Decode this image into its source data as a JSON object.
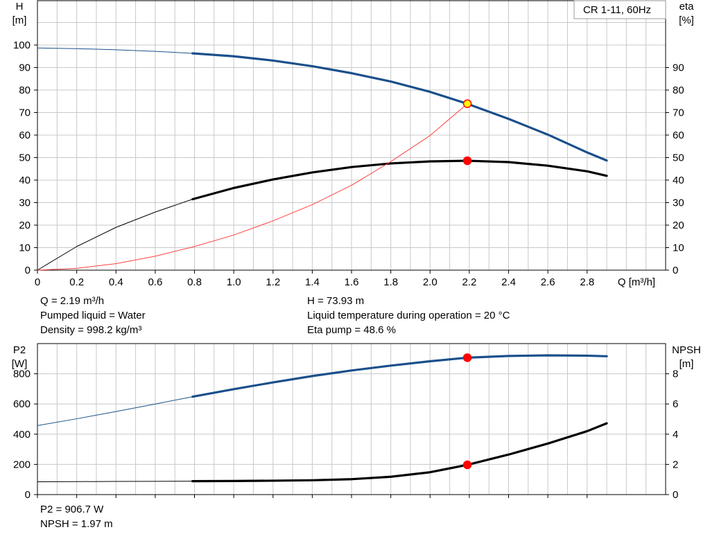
{
  "chart_data": [
    {
      "type": "line",
      "panel": "performance",
      "title": "CR 1-11, 60Hz",
      "x_axis": {
        "label": "Q [m³/h]",
        "range": [
          0,
          3.2
        ],
        "ticks": [
          0,
          0.2,
          0.4,
          0.6,
          0.8,
          1.0,
          1.2,
          1.4,
          1.6,
          1.8,
          2.0,
          2.2,
          2.4,
          2.6,
          2.8
        ],
        "tick_labels": [
          "0",
          "0.2",
          "0.4",
          "0.6",
          "0.8",
          "1.0",
          "1.2",
          "1.4",
          "1.6",
          "1.8",
          "2.0",
          "2.2",
          "2.4",
          "2.6",
          "2.8"
        ]
      },
      "y_left": {
        "label_line1": "H",
        "label_line2": "[m]",
        "range": [
          0,
          120
        ],
        "ticks": [
          0,
          10,
          20,
          30,
          40,
          50,
          60,
          70,
          80,
          90,
          100
        ]
      },
      "y_right": {
        "label_line1": "eta",
        "label_line2": "[%]",
        "range": [
          0,
          120
        ],
        "ticks": [
          0,
          10,
          20,
          30,
          40,
          50,
          60,
          70,
          80,
          90
        ]
      },
      "grid": true,
      "series": [
        {
          "id": "head",
          "color": "#1a4f8b",
          "axis": "left",
          "x": [
            0,
            0.2,
            0.4,
            0.6,
            0.79,
            1.0,
            1.2,
            1.4,
            1.6,
            1.8,
            2.0,
            2.19,
            2.4,
            2.6,
            2.8,
            2.9
          ],
          "y": [
            98.7,
            98.4,
            97.9,
            97.2,
            96.3,
            95.0,
            93.1,
            90.6,
            87.5,
            83.8,
            79.2,
            73.9,
            67.2,
            60.2,
            52.3,
            48.7
          ],
          "thin_until_x": 0.79
        },
        {
          "id": "efficiency",
          "color": "#000000",
          "axis": "right",
          "x": [
            0,
            0.2,
            0.4,
            0.6,
            0.79,
            1.0,
            1.2,
            1.4,
            1.6,
            1.8,
            2.0,
            2.19,
            2.4,
            2.6,
            2.8,
            2.9
          ],
          "y": [
            0,
            10.5,
            19.0,
            25.8,
            31.5,
            36.5,
            40.3,
            43.4,
            45.8,
            47.4,
            48.3,
            48.6,
            48.0,
            46.4,
            43.9,
            41.9
          ],
          "thin_until_x": 0.79
        },
        {
          "id": "system-curve",
          "color": "#ff4040",
          "axis": "left",
          "x": [
            0,
            0.2,
            0.4,
            0.6,
            0.8,
            1.0,
            1.2,
            1.4,
            1.6,
            1.8,
            2.0,
            2.19
          ],
          "y": [
            0,
            0.8,
            2.9,
            6.2,
            10.5,
            15.6,
            21.9,
            29.1,
            37.7,
            48.2,
            59.8,
            73.9
          ],
          "thin_until_x": 2.19
        }
      ],
      "markers": [
        {
          "id": "duty-point-head",
          "x": 2.19,
          "y": 73.93,
          "fill": "#ffff00",
          "stroke": "#ff0000"
        },
        {
          "id": "duty-point-eta",
          "x": 2.19,
          "y": 48.6,
          "fill": "#ff0000",
          "stroke": "#ff0000"
        }
      ]
    },
    {
      "type": "line",
      "panel": "power-npsh",
      "x_axis": {
        "range": [
          0,
          3.2
        ],
        "ticks": [
          0,
          0.2,
          0.4,
          0.6,
          0.8,
          1.0,
          1.2,
          1.4,
          1.6,
          1.8,
          2.0,
          2.2,
          2.4,
          2.6,
          2.8
        ]
      },
      "y_left": {
        "label_line1": "P2",
        "label_line2": "[W]",
        "range": [
          0,
          1000
        ],
        "ticks": [
          0,
          200,
          400,
          600,
          800
        ]
      },
      "y_right": {
        "label_line1": "NPSH",
        "label_line2": "[m]",
        "range": [
          0,
          10
        ],
        "ticks": [
          0,
          2,
          4,
          6,
          8
        ]
      },
      "grid": true,
      "series": [
        {
          "id": "power-p2",
          "color": "#1a4f8b",
          "axis": "left",
          "x": [
            0,
            0.2,
            0.4,
            0.6,
            0.79,
            1.0,
            1.2,
            1.4,
            1.6,
            1.8,
            2.0,
            2.19,
            2.4,
            2.6,
            2.8,
            2.9
          ],
          "y": [
            457,
            502,
            550,
            600,
            648,
            698,
            743,
            785,
            822,
            854,
            883,
            906.7,
            918,
            922,
            920,
            916
          ],
          "thin_until_x": 0.79
        },
        {
          "id": "npsh",
          "color": "#000000",
          "axis": "right",
          "x": [
            0,
            0.2,
            0.4,
            0.6,
            0.79,
            1.0,
            1.2,
            1.4,
            1.6,
            1.8,
            2.0,
            2.19,
            2.4,
            2.6,
            2.8,
            2.9
          ],
          "y": [
            0.85,
            0.86,
            0.87,
            0.88,
            0.89,
            0.9,
            0.92,
            0.95,
            1.02,
            1.18,
            1.48,
            1.97,
            2.65,
            3.38,
            4.2,
            4.72
          ],
          "thin_until_x": 0.79
        }
      ],
      "markers": [
        {
          "id": "duty-point-p2",
          "x": 2.19,
          "y": 906.7,
          "axis": "left",
          "fill": "#ff0000",
          "stroke": "#ff0000"
        },
        {
          "id": "duty-point-npsh",
          "x": 2.19,
          "y": 1.97,
          "axis": "right",
          "fill": "#ff0000",
          "stroke": "#ff0000"
        }
      ]
    }
  ],
  "info_top": {
    "q": "Q = 2.19 m³/h",
    "pumped_liquid": "Pumped liquid = Water",
    "density": "Density = 998.2 kg/m³",
    "h": "H = 73.93 m",
    "liquid_temp": "Liquid temperature during operation = 20 °C",
    "eta_pump": "Eta pump = 48.6 %"
  },
  "info_bottom": {
    "p2": "P2 = 906.7 W",
    "npsh": "NPSH = 1.97 m"
  },
  "colors": {
    "grid": "#c8c8c8",
    "head": "#1a4f8b",
    "system": "#ff4040",
    "duty": "#ff0000",
    "duty_fill": "#ffff00"
  }
}
